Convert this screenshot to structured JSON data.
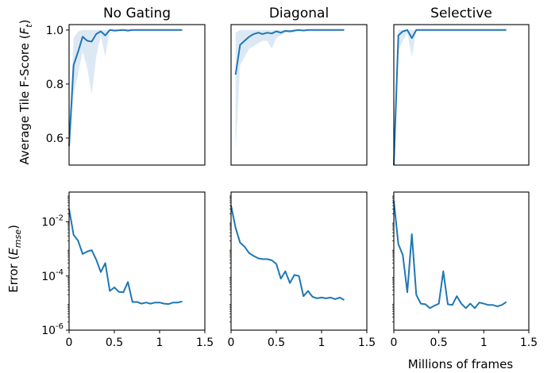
{
  "figure": {
    "y_label_top": "Average Tile F-Score (",
    "y_label_top_sym": "F",
    "y_label_top_sub": "t",
    "y_label_top_end": ")",
    "y_label_bottom": "Error (",
    "y_label_bottom_sym": "E",
    "y_label_bottom_sub": "mse",
    "y_label_bottom_end": ")",
    "x_label": "Millions of frames"
  },
  "colors": {
    "line": "#1f77b4",
    "band": "#dce9f5"
  },
  "chart_data": [
    {
      "type": "line",
      "title": "No Gating",
      "xlim": [
        0,
        1.5
      ],
      "ylim": [
        0.5,
        1.02
      ],
      "yticks": [
        "0.6",
        "0.8",
        "1.0"
      ],
      "xticks": [],
      "x": [
        0,
        0.05,
        0.1,
        0.15,
        0.2,
        0.25,
        0.3,
        0.35,
        0.4,
        0.45,
        0.5,
        0.55,
        0.6,
        0.65,
        0.7,
        0.75,
        0.8,
        0.85,
        0.9,
        0.95,
        1.0,
        1.05,
        1.1,
        1.15,
        1.2,
        1.25
      ],
      "y": [
        0.57,
        0.87,
        0.92,
        0.975,
        0.96,
        0.957,
        0.985,
        0.995,
        0.98,
        1.0,
        0.998,
        0.999,
        1.0,
        0.998,
        1.0,
        1.0,
        1.0,
        1.0,
        1.0,
        1.0,
        1.0,
        1.0,
        1.0,
        1.0,
        1.0,
        1.0
      ],
      "band_low": [
        0.54,
        0.76,
        0.84,
        0.92,
        0.86,
        0.76,
        0.9,
        0.98,
        0.9,
        1.0,
        0.99,
        0.995,
        1.0,
        0.99,
        1.0,
        1.0,
        1.0,
        1.0,
        1.0,
        1.0,
        1.0,
        1.0,
        1.0,
        1.0,
        1.0,
        1.0
      ],
      "band_high": [
        0.6,
        0.97,
        0.995,
        1.0,
        1.0,
        1.0,
        1.0,
        1.0,
        1.0,
        1.0,
        1.0,
        1.0,
        1.0,
        1.0,
        1.0,
        1.0,
        1.0,
        1.0,
        1.0,
        1.0,
        1.0,
        1.0,
        1.0,
        1.0,
        1.0,
        1.0
      ]
    },
    {
      "type": "line",
      "title": "Diagonal",
      "xlim": [
        0,
        1.5
      ],
      "ylim": [
        0.5,
        1.02
      ],
      "yticks": [],
      "xticks": [],
      "x": [
        0.05,
        0.1,
        0.15,
        0.2,
        0.25,
        0.3,
        0.35,
        0.4,
        0.45,
        0.5,
        0.55,
        0.6,
        0.65,
        0.7,
        0.75,
        0.8,
        0.85,
        0.9,
        0.95,
        1.0,
        1.05,
        1.1,
        1.15,
        1.2,
        1.25
      ],
      "y": [
        0.835,
        0.945,
        0.96,
        0.975,
        0.985,
        0.99,
        0.985,
        0.99,
        0.987,
        0.995,
        0.99,
        0.997,
        0.995,
        0.998,
        1.0,
        0.998,
        1.0,
        1.0,
        1.0,
        1.0,
        1.0,
        1.0,
        1.0,
        1.0,
        1.0
      ],
      "band_low": [
        0.55,
        0.87,
        0.9,
        0.93,
        0.94,
        0.95,
        0.96,
        0.96,
        0.93,
        0.97,
        0.98,
        0.99,
        0.99,
        0.99,
        1.0,
        0.995,
        1.0,
        1.0,
        1.0,
        1.0,
        1.0,
        1.0,
        1.0,
        1.0,
        1.0
      ],
      "band_high": [
        0.99,
        1.0,
        1.0,
        1.0,
        1.0,
        1.0,
        1.0,
        1.0,
        1.0,
        1.0,
        1.0,
        1.0,
        1.0,
        1.0,
        1.0,
        1.0,
        1.0,
        1.0,
        1.0,
        1.0,
        1.0,
        1.0,
        1.0,
        1.0,
        1.0
      ]
    },
    {
      "type": "line",
      "title": "Selective",
      "xlim": [
        0,
        1.5
      ],
      "ylim": [
        0.5,
        1.02
      ],
      "yticks": [],
      "xticks": [],
      "x": [
        0,
        0.05,
        0.1,
        0.15,
        0.2,
        0.25,
        0.3,
        0.35,
        0.4,
        0.45,
        0.5,
        0.55,
        0.6,
        0.65,
        0.7,
        0.75,
        0.8,
        0.85,
        0.9,
        0.95,
        1.0,
        1.05,
        1.1,
        1.15,
        1.2,
        1.25
      ],
      "y": [
        0.5,
        0.98,
        0.995,
        1.0,
        0.97,
        1.0,
        1.0,
        1.0,
        1.0,
        1.0,
        1.0,
        1.0,
        1.0,
        1.0,
        1.0,
        1.0,
        1.0,
        1.0,
        1.0,
        1.0,
        1.0,
        1.0,
        1.0,
        1.0,
        1.0,
        1.0
      ],
      "band_low": [
        0.5,
        0.92,
        0.96,
        0.99,
        0.9,
        0.995,
        1.0,
        1.0,
        1.0,
        1.0,
        1.0,
        1.0,
        1.0,
        1.0,
        1.0,
        1.0,
        1.0,
        1.0,
        1.0,
        1.0,
        1.0,
        1.0,
        1.0,
        1.0,
        1.0,
        1.0
      ],
      "band_high": [
        0.52,
        1.0,
        1.0,
        1.0,
        1.0,
        1.0,
        1.0,
        1.0,
        1.0,
        1.0,
        1.0,
        1.0,
        1.0,
        1.0,
        1.0,
        1.0,
        1.0,
        1.0,
        1.0,
        1.0,
        1.0,
        1.0,
        1.0,
        1.0,
        1.0,
        1.0
      ]
    },
    {
      "type": "line",
      "title": "",
      "xlim": [
        0,
        1.5
      ],
      "yscale": "log",
      "ylim_exp": [
        -6,
        -0.9
      ],
      "yticks": [
        {
          "base": "10",
          "exp": "-2",
          "e": -2
        },
        {
          "base": "10",
          "exp": "-4",
          "e": -4
        },
        {
          "base": "10",
          "exp": "-6",
          "e": -6
        }
      ],
      "xticks": [
        "0",
        "0.5",
        "1",
        "1.5"
      ],
      "xtick_values": [
        0,
        0.5,
        1,
        1.5
      ],
      "x": [
        0,
        0.05,
        0.1,
        0.15,
        0.2,
        0.25,
        0.3,
        0.35,
        0.4,
        0.45,
        0.5,
        0.55,
        0.6,
        0.65,
        0.7,
        0.75,
        0.8,
        0.85,
        0.9,
        0.95,
        1.0,
        1.05,
        1.1,
        1.15,
        1.2,
        1.25
      ],
      "y": [
        0.03,
        0.0033,
        0.002,
        0.00065,
        0.0008,
        0.0009,
        0.0004,
        0.00014,
        0.0003,
        2.8e-05,
        3.8e-05,
        2.6e-05,
        2.5e-05,
        6e-05,
        1.1e-05,
        1.1e-05,
        9.5e-06,
        1.05e-05,
        9.5e-06,
        1.05e-05,
        1.05e-05,
        9.5e-06,
        9.2e-06,
        1.05e-05,
        1.05e-05,
        1.15e-05
      ]
    },
    {
      "type": "line",
      "title": "",
      "xlim": [
        0,
        1.5
      ],
      "yscale": "log",
      "ylim_exp": [
        -6,
        -0.9
      ],
      "yticks": [],
      "xticks": [
        "0",
        "0.5",
        "1",
        "1.5"
      ],
      "xtick_values": [
        0,
        0.5,
        1,
        1.5
      ],
      "x": [
        0,
        0.05,
        0.1,
        0.15,
        0.2,
        0.25,
        0.3,
        0.35,
        0.4,
        0.45,
        0.5,
        0.55,
        0.6,
        0.65,
        0.7,
        0.75,
        0.8,
        0.85,
        0.9,
        0.95,
        1.0,
        1.05,
        1.1,
        1.15,
        1.2,
        1.25
      ],
      "y": [
        0.04,
        0.006,
        0.0017,
        0.0012,
        0.0007,
        0.00055,
        0.00045,
        0.00042,
        0.00042,
        0.00038,
        0.00028,
        8e-05,
        0.00015,
        5.5e-05,
        0.00011,
        0.0001,
        1.8e-05,
        2.8e-05,
        1.7e-05,
        1.5e-05,
        1.6e-05,
        1.5e-05,
        1.6e-05,
        1.4e-05,
        1.6e-05,
        1.3e-05
      ]
    },
    {
      "type": "line",
      "title": "",
      "xlim": [
        0,
        1.5
      ],
      "yscale": "log",
      "ylim_exp": [
        -6,
        -0.9
      ],
      "yticks": [],
      "xticks": [
        "0",
        "0.5",
        "1",
        "1.5"
      ],
      "xtick_values": [
        0,
        0.5,
        1,
        1.5
      ],
      "x": [
        0,
        0.05,
        0.1,
        0.15,
        0.2,
        0.25,
        0.3,
        0.35,
        0.4,
        0.45,
        0.5,
        0.55,
        0.6,
        0.65,
        0.7,
        0.75,
        0.8,
        0.85,
        0.9,
        0.95,
        1.0,
        1.05,
        1.1,
        1.15,
        1.2,
        1.25
      ],
      "y": [
        0.06,
        0.0015,
        0.0006,
        2.5e-05,
        0.0035,
        2e-05,
        9.5e-06,
        9e-06,
        6.5e-06,
        8e-06,
        9.5e-06,
        0.00015,
        9e-06,
        8.5e-06,
        1.8e-05,
        9.5e-06,
        6.5e-06,
        9.5e-06,
        6.5e-06,
        1.05e-05,
        9.5e-06,
        8.5e-06,
        8.5e-06,
        7.5e-06,
        8.5e-06,
        1.1e-05
      ]
    }
  ]
}
